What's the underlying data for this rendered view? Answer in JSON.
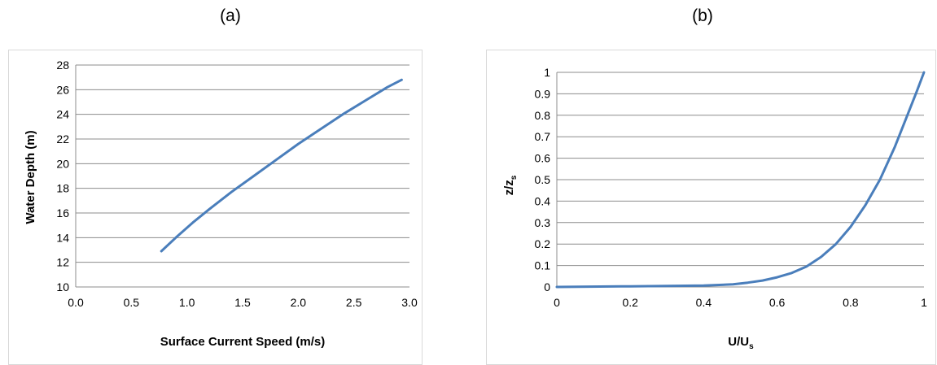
{
  "panels": {
    "a_label": "(a)",
    "b_label": "(b)"
  },
  "chart_data": [
    {
      "type": "line",
      "title": "",
      "xlabel": "Surface Current Speed (m/s)",
      "ylabel": "Water Depth (m)",
      "xlim": [
        0.0,
        3.0
      ],
      "ylim": [
        10,
        28
      ],
      "xticks": [
        "0.0",
        "0.5",
        "1.0",
        "1.5",
        "2.0",
        "2.5",
        "3.0"
      ],
      "yticks": [
        "10",
        "12",
        "14",
        "16",
        "18",
        "20",
        "22",
        "24",
        "26",
        "28"
      ],
      "grid": "horizontal",
      "legend": "none",
      "color": "#4a7ebb",
      "series": [
        {
          "x": [
            0.77,
            0.9,
            1.05,
            1.2,
            1.4,
            1.6,
            1.8,
            2.0,
            2.2,
            2.4,
            2.6,
            2.8,
            2.93
          ],
          "y": [
            12.9,
            14.0,
            15.2,
            16.3,
            17.7,
            19.0,
            20.3,
            21.6,
            22.8,
            24.0,
            25.1,
            26.2,
            26.8
          ]
        }
      ]
    },
    {
      "type": "line",
      "title": "",
      "xlabel_main": "U/U",
      "xlabel_sub": "s",
      "ylabel_main": "z/z",
      "ylabel_sub": "s",
      "xlim": [
        0,
        1
      ],
      "ylim": [
        0,
        1
      ],
      "xticks": [
        "0",
        "0.2",
        "0.4",
        "0.6",
        "0.8",
        "1"
      ],
      "yticks": [
        "0",
        "0.1",
        "0.2",
        "0.3",
        "0.4",
        "0.5",
        "0.6",
        "0.7",
        "0.8",
        "0.9",
        "1"
      ],
      "grid": "horizontal",
      "legend": "none",
      "color": "#4a7ebb",
      "series": [
        {
          "x": [
            0.0,
            0.2,
            0.4,
            0.48,
            0.52,
            0.56,
            0.6,
            0.64,
            0.68,
            0.72,
            0.76,
            0.8,
            0.84,
            0.88,
            0.92,
            0.95,
            0.98,
            1.0
          ],
          "y": [
            0.0,
            0.003,
            0.007,
            0.012,
            0.02,
            0.03,
            0.045,
            0.065,
            0.095,
            0.14,
            0.2,
            0.28,
            0.38,
            0.5,
            0.65,
            0.78,
            0.91,
            1.0
          ]
        }
      ]
    }
  ]
}
